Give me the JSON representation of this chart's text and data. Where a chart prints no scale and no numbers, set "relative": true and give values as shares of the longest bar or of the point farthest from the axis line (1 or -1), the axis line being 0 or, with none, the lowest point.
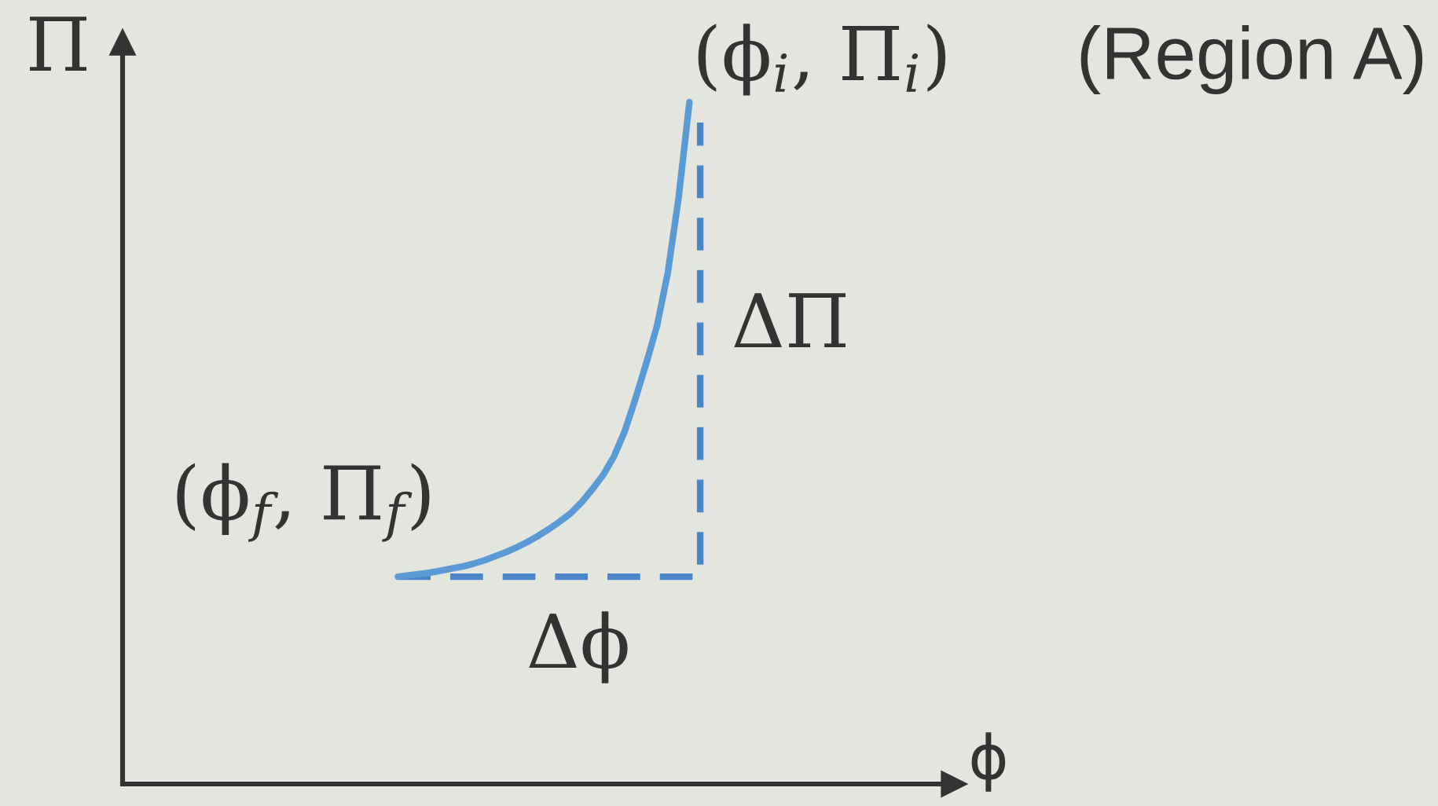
{
  "chart_data": {
    "type": "line",
    "relative": true,
    "xlabel": "ϕ",
    "ylabel": "Π",
    "categories": [
      null,
      null,
      null,
      null,
      null,
      null,
      null,
      null,
      null,
      null,
      null,
      null,
      null,
      null,
      null,
      null,
      null,
      null,
      null,
      null,
      null,
      null,
      null,
      null,
      null,
      null,
      null,
      null,
      null,
      null,
      null,
      null,
      null,
      null,
      null,
      null,
      null,
      null,
      null,
      null,
      null,
      null,
      null,
      null,
      null,
      null,
      null,
      null,
      null,
      null,
      null,
      null,
      null,
      null,
      null,
      null,
      null,
      null,
      null,
      null,
      null,
      null,
      null,
      null,
      null,
      null,
      null,
      null,
      null,
      null,
      null,
      null,
      null,
      null,
      null,
      null,
      null
    ],
    "series": [
      {
        "type": "step",
        "color": "#4a86c8",
        "line_style": "dashed",
        "values": [
          null,
          null,
          null,
          null,
          null,
          null,
          null,
          null,
          null,
          null,
          null,
          null,
          null,
          null,
          null,
          null,
          null,
          null,
          null,
          null,
          null,
          null,
          null,
          null,
          null,
          0.304,
          null,
          null,
          null,
          null,
          null,
          null,
          null,
          null,
          null,
          null,
          null,
          null,
          null,
          null,
          null,
          null,
          null,
          null,
          null,
          null,
          null,
          null,
          null,
          null,
          null,
          null,
          null,
          0.97,
          null,
          null,
          null,
          null,
          null,
          null,
          null,
          null,
          null,
          null,
          null,
          null,
          null,
          null,
          null,
          null,
          null,
          null,
          null,
          null,
          null,
          null,
          null
        ]
      },
      {
        "color": "#5b9bd5",
        "line_style": "solid",
        "values": [
          null,
          null,
          null,
          null,
          null,
          null,
          null,
          null,
          null,
          null,
          null,
          null,
          null,
          null,
          null,
          null,
          null,
          null,
          null,
          null,
          null,
          null,
          null,
          null,
          null,
          0.304,
          0.306,
          0.308,
          0.31,
          0.313,
          0.316,
          0.319,
          0.323,
          0.328,
          0.334,
          0.34,
          0.347,
          0.355,
          0.364,
          0.374,
          0.385,
          0.397,
          0.413,
          0.432,
          0.453,
          0.48,
          0.517,
          0.565,
          0.617,
          0.672,
          0.75,
          0.86,
          1,
          null,
          null,
          null,
          null,
          null,
          null,
          null,
          null,
          null,
          null,
          null,
          null,
          null,
          null,
          null,
          null,
          null,
          null,
          null,
          null,
          null,
          null,
          null,
          null
        ]
      }
    ],
    "annotations": [
      "(ϕ$_{f}$, Π$_{f}$)",
      "(ϕ$_{i}$, Π$_{i}$)",
      "(Region A)",
      "ΔΠ",
      "Δϕ"
    ],
    "legend": false,
    "grid": false,
    "marker": "none"
  }
}
